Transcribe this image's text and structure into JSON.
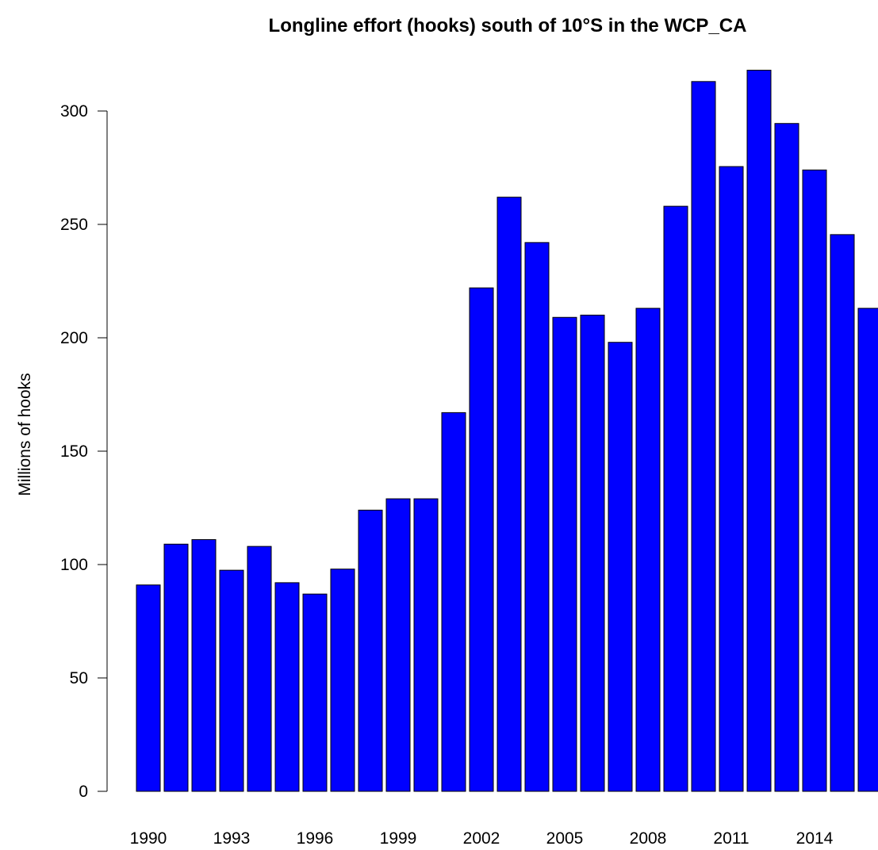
{
  "chart_data": {
    "type": "bar",
    "title": "Longline effort (hooks) south of 10°S in the WCP_CA",
    "y_label": "Millions of hooks",
    "categories": [
      "1990",
      null,
      null,
      "1993",
      null,
      null,
      "1996",
      null,
      null,
      "1999",
      null,
      null,
      "2002",
      null,
      null,
      "2005",
      null,
      null,
      "2008",
      null,
      null,
      "2011",
      null,
      null,
      "2014",
      null,
      null
    ],
    "values": [
      91,
      109,
      111,
      97.5,
      108,
      92,
      87,
      98,
      124,
      129,
      129,
      167,
      222,
      262,
      242,
      209,
      210,
      198,
      213,
      258,
      313,
      275.5,
      318,
      294.5,
      274,
      245.5,
      213
    ],
    "color": "#0000ff",
    "ylim": [
      0,
      320
    ],
    "yticks": [
      0,
      50,
      100,
      150,
      200,
      250,
      300
    ]
  }
}
